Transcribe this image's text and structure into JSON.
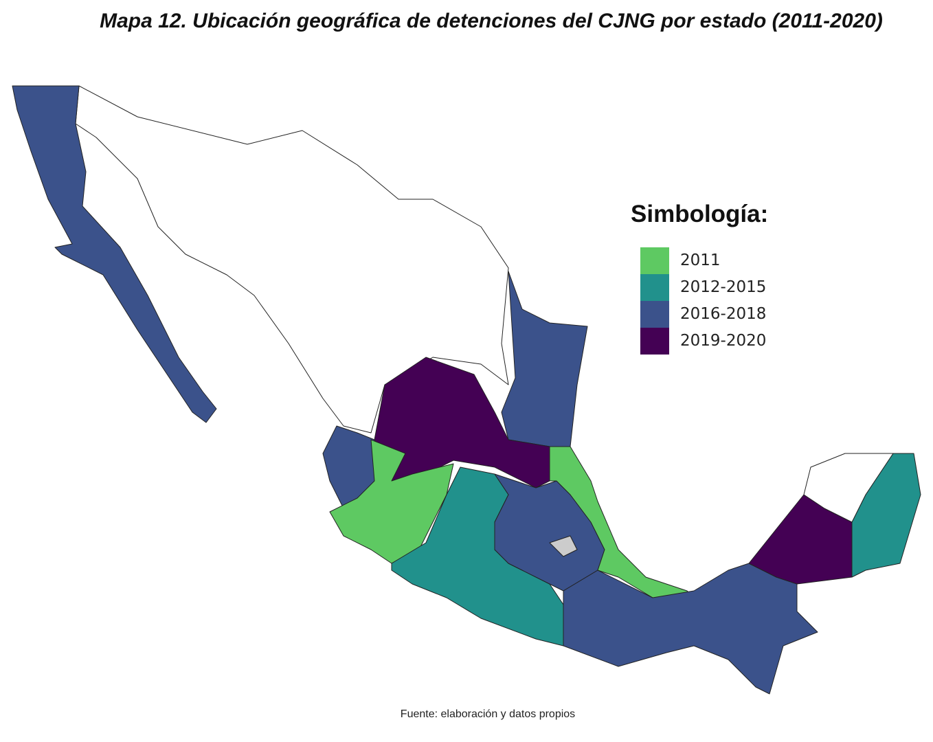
{
  "header": {
    "title": "Mapa 12. Ubicación geográfica de detenciones del CJNG por estado (2011-2020)"
  },
  "legend": {
    "title": "Simbología:",
    "items": [
      {
        "label": "2011",
        "color": "#5ec962"
      },
      {
        "label": "2012-2015",
        "color": "#21918c"
      },
      {
        "label": "2016-2018",
        "color": "#3b528b"
      },
      {
        "label": "2019-2020",
        "color": "#440154"
      }
    ]
  },
  "footer": {
    "source": "Fuente: elaboración y datos propios"
  }
}
